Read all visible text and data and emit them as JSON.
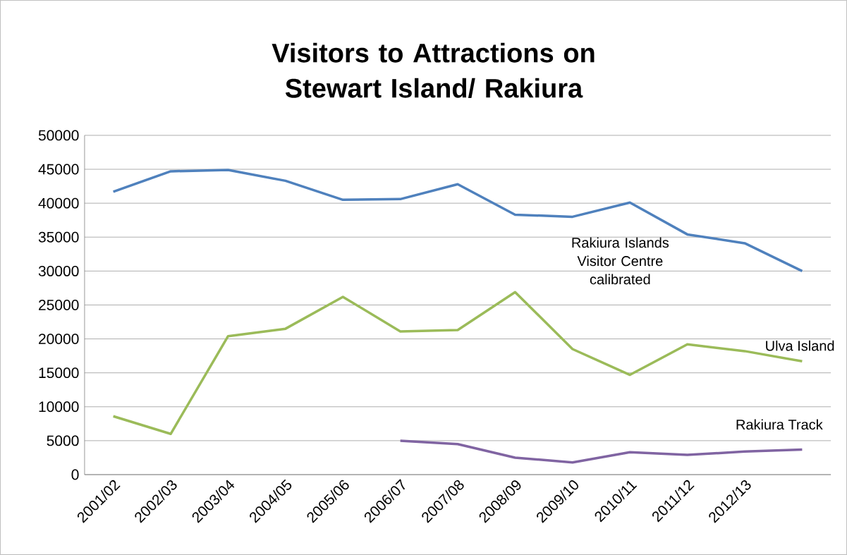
{
  "chart_data": {
    "type": "line",
    "title": "Visitors to Attractions on Stewart Island/ Rakiura",
    "categories": [
      "2001/02",
      "2002/03",
      "2003/04",
      "2004/05",
      "2005/06",
      "2006/07",
      "2007/08",
      "2008/09",
      "2009/10",
      "2010/11",
      "2011/12",
      "2012/13",
      null
    ],
    "series": [
      {
        "name": "Rakiura Islands Visitor Centre calibrated",
        "color": "#4f81bd",
        "values": [
          41700,
          44700,
          44900,
          43300,
          40500,
          40600,
          42800,
          38300,
          38000,
          40100,
          35400,
          34100,
          30000
        ]
      },
      {
        "name": "Ulva Island",
        "color": "#9bbb59",
        "values": [
          8600,
          6000,
          20400,
          21500,
          26200,
          21100,
          21300,
          26900,
          18500,
          14700,
          19200,
          18200,
          16700
        ]
      },
      {
        "name": "Rakiura Track",
        "color": "#8064a2",
        "values": [
          null,
          null,
          null,
          null,
          null,
          5000,
          4500,
          2500,
          1800,
          3300,
          2900,
          3400,
          3700
        ]
      }
    ],
    "ylim": [
      0,
      50000
    ],
    "yticks": [
      0,
      5000,
      10000,
      15000,
      20000,
      25000,
      30000,
      35000,
      40000,
      45000,
      50000
    ],
    "grid": "y"
  }
}
